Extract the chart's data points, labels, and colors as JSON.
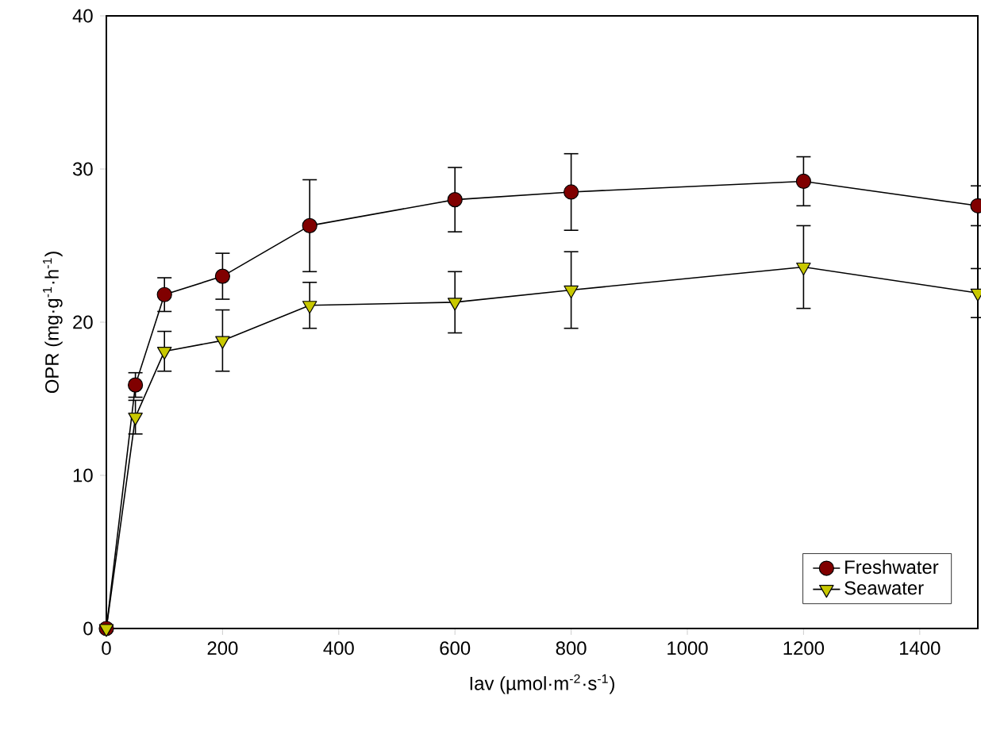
{
  "chart_data": {
    "type": "line",
    "xlabel": "Iav (µmol·m$^{-2}$·s$^{-1}$)",
    "ylabel": "OPR (mg·g$^{-1}$·h$^{-1}$)",
    "x": [
      0,
      50,
      100,
      200,
      350,
      600,
      800,
      1200,
      1500
    ],
    "series": [
      {
        "name": "Freshwater",
        "color": "#800000",
        "marker": "circle",
        "values": [
          0,
          15.9,
          21.8,
          23.0,
          26.3,
          28.0,
          28.5,
          29.2,
          27.6
        ],
        "errors": [
          null,
          0.8,
          1.1,
          1.5,
          3.0,
          2.1,
          2.5,
          1.6,
          1.3
        ]
      },
      {
        "name": "Seawater",
        "color": "#c8c800",
        "marker": "triangle",
        "values": [
          0,
          13.8,
          18.1,
          18.8,
          21.1,
          21.3,
          22.1,
          23.6,
          21.9
        ],
        "errors": [
          null,
          1.1,
          1.3,
          2.0,
          1.5,
          2.0,
          2.5,
          2.7,
          1.6
        ]
      }
    ],
    "xlim": [
      0,
      1500
    ],
    "xticks": [
      0,
      200,
      400,
      600,
      800,
      1000,
      1200,
      1400
    ],
    "ylim": [
      0,
      40
    ],
    "yticks": [
      0,
      10,
      20,
      30,
      40
    ],
    "grid": false,
    "legend": "bottom right",
    "line_style": "solid"
  }
}
